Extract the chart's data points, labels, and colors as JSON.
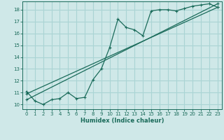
{
  "xlabel": "Humidex (Indice chaleur)",
  "bg_color": "#cfe8e8",
  "grid_color": "#aad4d4",
  "line_color": "#1a6b5a",
  "xlim": [
    -0.5,
    23.5
  ],
  "ylim": [
    9.6,
    18.7
  ],
  "yticks": [
    10,
    11,
    12,
    13,
    14,
    15,
    16,
    17,
    18
  ],
  "xticks": [
    0,
    1,
    2,
    3,
    4,
    5,
    6,
    7,
    8,
    9,
    10,
    11,
    12,
    13,
    14,
    15,
    16,
    17,
    18,
    19,
    20,
    21,
    22,
    23
  ],
  "series1_x": [
    0,
    1,
    2,
    3,
    4,
    5,
    6,
    7,
    8,
    9,
    10,
    11,
    12,
    13,
    14,
    15,
    16,
    17,
    18,
    19,
    20,
    21,
    22,
    23
  ],
  "series1_y": [
    11.1,
    10.3,
    10.0,
    10.4,
    10.5,
    11.0,
    10.5,
    10.6,
    12.1,
    13.0,
    14.8,
    17.2,
    16.5,
    16.3,
    15.8,
    17.9,
    18.0,
    18.0,
    17.9,
    18.1,
    18.3,
    18.4,
    18.5,
    18.2
  ],
  "line1_x": [
    0,
    23
  ],
  "line1_y": [
    10.4,
    18.5
  ],
  "line2_x": [
    0,
    23
  ],
  "line2_y": [
    10.9,
    18.2
  ]
}
